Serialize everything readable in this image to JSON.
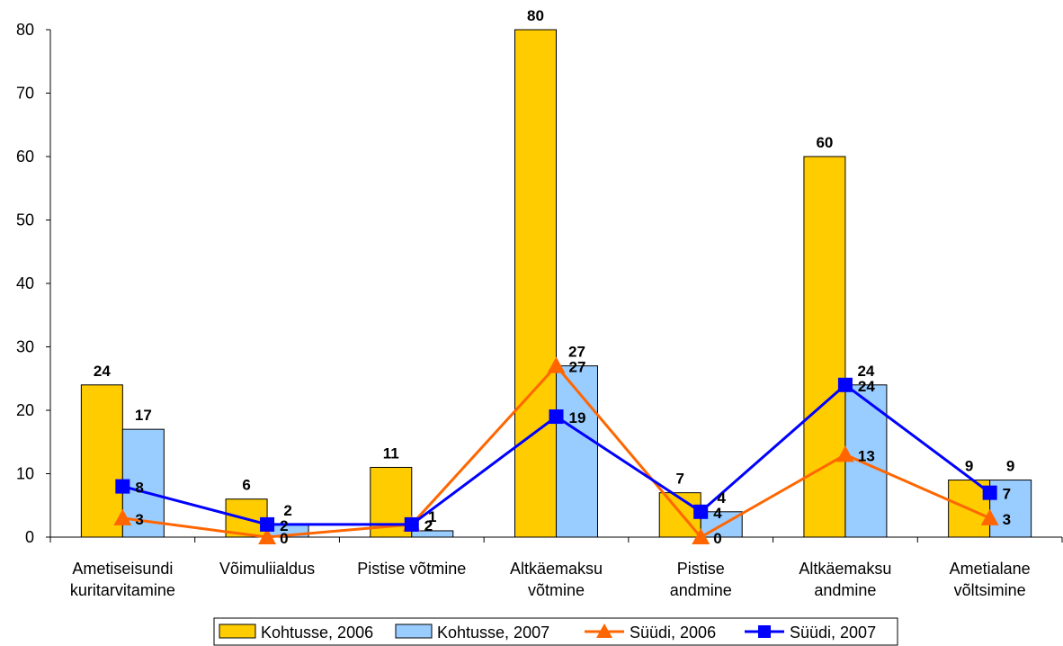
{
  "chart_data": {
    "type": "bar",
    "title": "",
    "xlabel": "",
    "ylabel": "",
    "ylim": [
      0,
      80
    ],
    "yticks": [
      0,
      10,
      20,
      30,
      40,
      50,
      60,
      70,
      80
    ],
    "grid": false,
    "legend_position": "bottom",
    "categories": [
      [
        "Ametiseisundi",
        "kuritarvitamine"
      ],
      [
        "Võimuliialdus"
      ],
      [
        "Pistise võtmine"
      ],
      [
        "Altkäemaksu",
        "võtmine"
      ],
      [
        "Pistise",
        "andmine"
      ],
      [
        "Altkäemaksu",
        "andmine"
      ],
      [
        "Ametialane",
        "võltsimine"
      ]
    ],
    "series": [
      {
        "name": "Kohtusse, 2006",
        "kind": "bar",
        "color": "#FFCC00",
        "values": [
          24,
          6,
          11,
          80,
          7,
          60,
          9
        ]
      },
      {
        "name": "Kohtusse, 2007",
        "kind": "bar",
        "color": "#99CCFF",
        "values": [
          17,
          2,
          1,
          27,
          4,
          24,
          9
        ]
      },
      {
        "name": "Süüdi, 2006",
        "kind": "line",
        "marker": "triangle",
        "color": "#FF6600",
        "values": [
          3,
          0,
          2,
          27,
          0,
          13,
          3
        ]
      },
      {
        "name": "Süüdi, 2007",
        "kind": "line",
        "marker": "square",
        "color": "#0000FF",
        "values": [
          8,
          2,
          2,
          19,
          4,
          24,
          7
        ]
      }
    ]
  }
}
